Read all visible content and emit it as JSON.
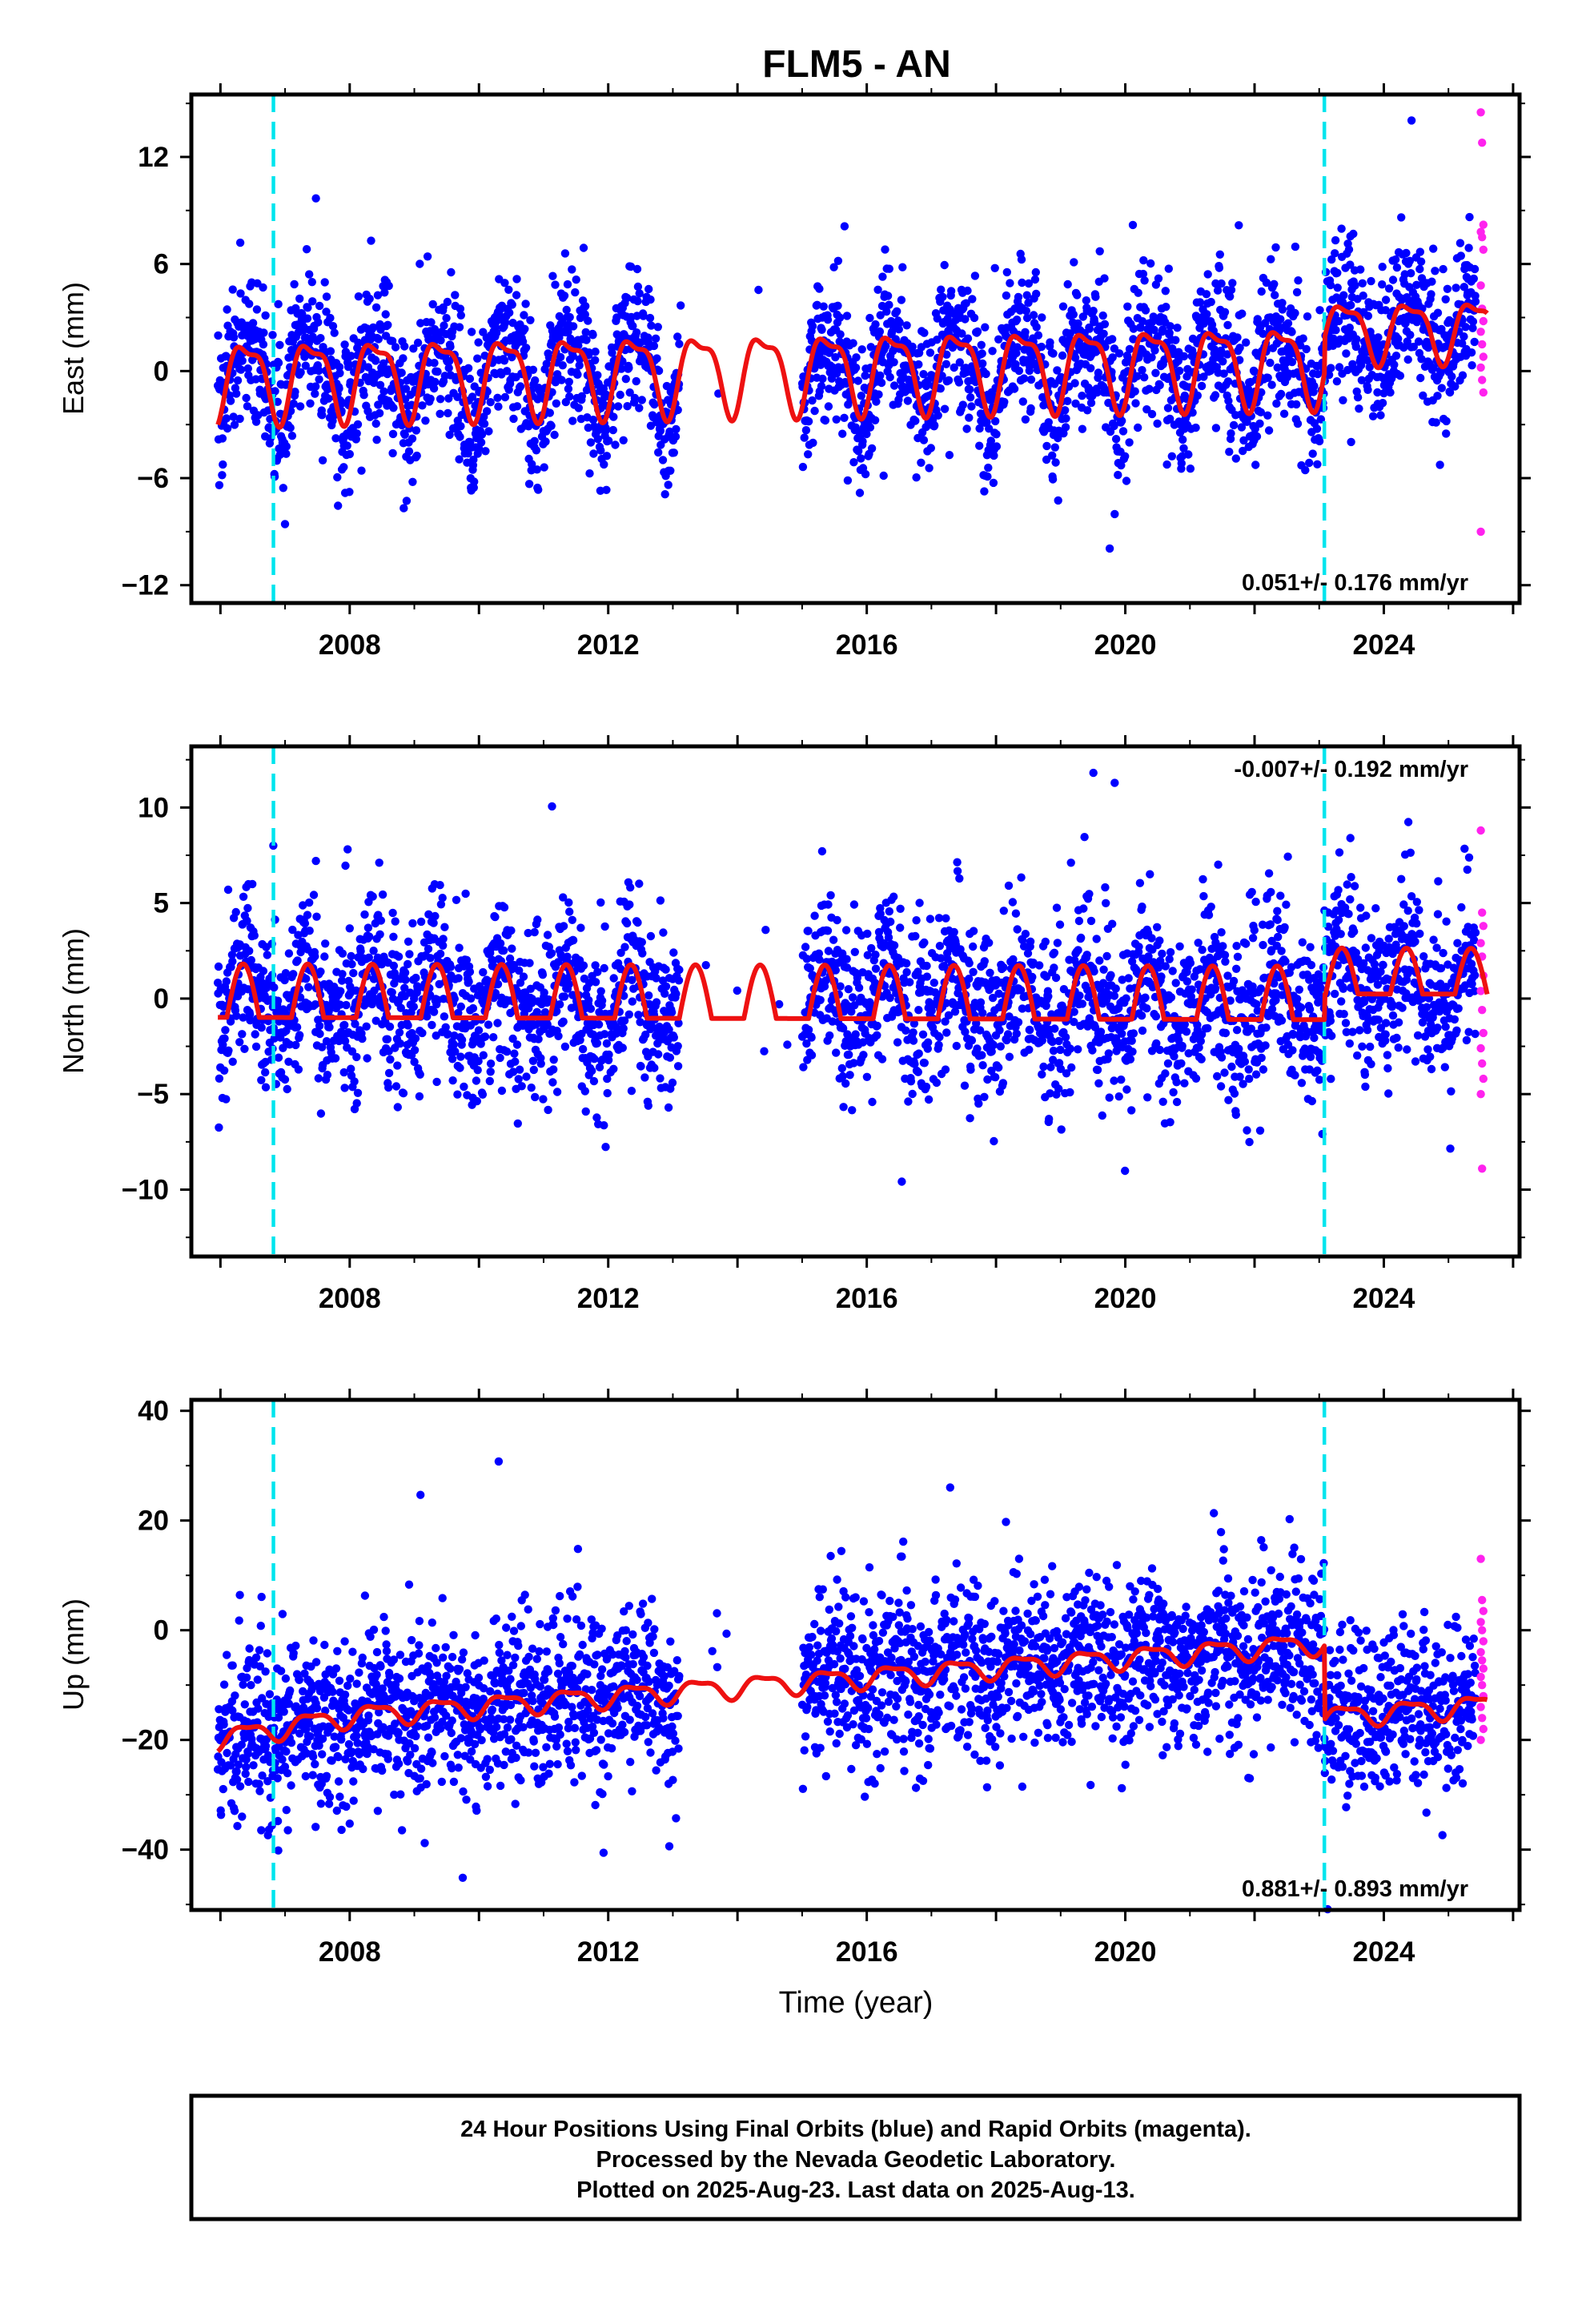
{
  "chart_data": {
    "type": "scatter",
    "title": "FLM5 - AN",
    "xlabel": "Time (year)",
    "xlim": [
      2005.55,
      2026.1
    ],
    "x_ticks": [
      2008,
      2012,
      2016,
      2020,
      2024
    ],
    "x_tick_labels": [
      "2008",
      "2012",
      "2016",
      "2020",
      "2024"
    ],
    "vertical_lines": [
      2006.82,
      2023.08
    ],
    "vertical_line_color": "#00e5ee",
    "final_orbits_color": "#0000ff",
    "rapid_orbits_color": "#ff22ee",
    "fit_color": "#ee1111",
    "panels": [
      {
        "name": "east",
        "ylabel": "East (mm)",
        "ylim": [
          -13,
          15.5
        ],
        "y_ticks": [
          -12,
          -6,
          0,
          6,
          12
        ],
        "y_tick_labels": [
          "−12",
          "−6",
          "0",
          "6",
          "12"
        ],
        "rate_text": "0.051+/- 0.176 mm/yr",
        "rate_position": "bottom-right",
        "fit": {
          "offset": 0.1,
          "trend": 0.051,
          "amp": 2.1,
          "jumps": [],
          "post_amp": 1.6,
          "post_shift": 1.8
        },
        "scatter_sd": 2.0,
        "rapid_values": [
          14.5,
          12.8,
          8.2,
          7.8,
          7.5,
          6.8,
          4.8,
          3.5,
          2.8,
          2.2,
          1.5,
          0.8,
          0.2,
          -0.5,
          -1.2,
          -9.0
        ]
      },
      {
        "name": "north",
        "ylabel": "North (mm)",
        "ylim": [
          -13.5,
          13.2
        ],
        "y_ticks": [
          -10,
          -5,
          0,
          5,
          10
        ],
        "y_tick_labels": [
          "−10",
          "−5",
          "0",
          "5",
          "10"
        ],
        "rate_text": "-0.007+/- 0.192 mm/yr",
        "rate_position": "top-right",
        "fit": {
          "offset": 0.0,
          "trend": -0.007,
          "amp": 1.4,
          "jumps": [],
          "post_amp": 1.2,
          "post_shift": 1.2
        },
        "scatter_sd": 2.2,
        "rapid_values": [
          8.8,
          4.5,
          3.8,
          2.9,
          2.2,
          1.2,
          0.4,
          -0.6,
          -1.8,
          -2.6,
          -3.4,
          -4.2,
          -5.0,
          -8.9
        ]
      },
      {
        "name": "up",
        "ylabel": "Up (mm)",
        "ylim": [
          -51,
          42
        ],
        "y_ticks": [
          -40,
          -20,
          0,
          20,
          40
        ],
        "y_tick_labels": [
          "−40",
          "−20",
          "0",
          "20",
          "40"
        ],
        "rate_text": "0.881+/- 0.893 mm/yr",
        "rate_position": "bottom-right",
        "fit": {
          "offset": -9.0,
          "trend": 0.881,
          "amp": 1.8,
          "jumps": [
            [
              2023.08,
              -13.5
            ]
          ],
          "post_amp": 1.8,
          "post_shift": 0
        },
        "scatter_sd": 7.5,
        "rapid_values": [
          13.0,
          5.5,
          3.5,
          1.5,
          0.0,
          -2.0,
          -4.0,
          -5.5,
          -7.0,
          -8.5,
          -10.0,
          -12.0,
          -14.0,
          -16.0,
          -18.0,
          -20.0
        ]
      }
    ],
    "data_gaps": [
      [
        2013.1,
        2015.0
      ]
    ],
    "footer_lines": [
      "24 Hour Positions Using Final Orbits (blue) and Rapid Orbits (magenta).",
      "Processed by the Nevada Geodetic Laboratory.",
      "Plotted on 2025-Aug-23. Last data on 2025-Aug-13."
    ]
  }
}
